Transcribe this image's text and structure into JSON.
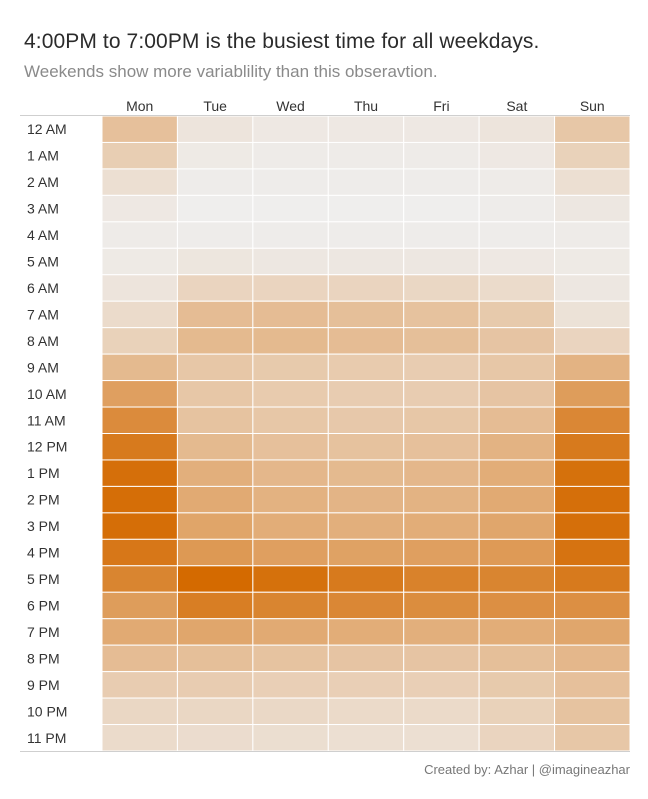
{
  "header": {
    "title": "4:00PM to 7:00PM is the busiest time for all weekdays.",
    "subtitle": "Weekends show more variablility than this obseravtion."
  },
  "footer": {
    "credit": "Created by: Azhar | @imagineazhar"
  },
  "chart_data": {
    "type": "heatmap",
    "x_categories": [
      "Mon",
      "Tue",
      "Wed",
      "Thu",
      "Fri",
      "Sat",
      "Sun"
    ],
    "y_categories": [
      "12 AM",
      "1 AM",
      "2 AM",
      "3 AM",
      "4 AM",
      "5 AM",
      "6 AM",
      "7 AM",
      "8 AM",
      "9 AM",
      "10 AM",
      "11 AM",
      "12 PM",
      "1 PM",
      "2 PM",
      "3 PM",
      "4 PM",
      "5 PM",
      "6 PM",
      "7 PM",
      "8 PM",
      "9 PM",
      "10 PM",
      "11 PM"
    ],
    "x_axis_position": "top",
    "value_range": [
      0,
      1
    ],
    "color_low": "#efefef",
    "color_high": "#d46a00",
    "cell_border_color": "#ffffff",
    "values": [
      [
        0.35,
        0.08,
        0.05,
        0.05,
        0.05,
        0.08,
        0.3
      ],
      [
        0.25,
        0.04,
        0.03,
        0.03,
        0.03,
        0.05,
        0.22
      ],
      [
        0.12,
        0.02,
        0.02,
        0.02,
        0.02,
        0.03,
        0.12
      ],
      [
        0.05,
        0.01,
        0.01,
        0.01,
        0.01,
        0.02,
        0.06
      ],
      [
        0.03,
        0.02,
        0.02,
        0.02,
        0.02,
        0.02,
        0.03
      ],
      [
        0.04,
        0.07,
        0.06,
        0.06,
        0.06,
        0.05,
        0.04
      ],
      [
        0.08,
        0.2,
        0.2,
        0.2,
        0.18,
        0.15,
        0.06
      ],
      [
        0.15,
        0.38,
        0.38,
        0.36,
        0.34,
        0.28,
        0.1
      ],
      [
        0.22,
        0.4,
        0.4,
        0.38,
        0.36,
        0.32,
        0.2
      ],
      [
        0.4,
        0.3,
        0.28,
        0.27,
        0.26,
        0.3,
        0.45
      ],
      [
        0.6,
        0.3,
        0.27,
        0.26,
        0.26,
        0.32,
        0.62
      ],
      [
        0.75,
        0.33,
        0.3,
        0.29,
        0.3,
        0.38,
        0.78
      ],
      [
        0.88,
        0.4,
        0.35,
        0.34,
        0.35,
        0.45,
        0.88
      ],
      [
        0.96,
        0.48,
        0.42,
        0.4,
        0.42,
        0.5,
        0.95
      ],
      [
        0.97,
        0.52,
        0.46,
        0.44,
        0.45,
        0.52,
        0.96
      ],
      [
        0.97,
        0.56,
        0.5,
        0.48,
        0.5,
        0.55,
        0.96
      ],
      [
        0.9,
        0.65,
        0.6,
        0.58,
        0.6,
        0.64,
        0.93
      ],
      [
        0.8,
        1.0,
        0.95,
        0.88,
        0.82,
        0.8,
        0.88
      ],
      [
        0.62,
        0.85,
        0.8,
        0.78,
        0.74,
        0.72,
        0.72
      ],
      [
        0.52,
        0.55,
        0.52,
        0.5,
        0.48,
        0.5,
        0.55
      ],
      [
        0.38,
        0.36,
        0.33,
        0.32,
        0.32,
        0.36,
        0.42
      ],
      [
        0.26,
        0.26,
        0.24,
        0.24,
        0.24,
        0.28,
        0.35
      ],
      [
        0.18,
        0.18,
        0.17,
        0.16,
        0.16,
        0.22,
        0.33
      ],
      [
        0.15,
        0.14,
        0.13,
        0.12,
        0.12,
        0.2,
        0.3
      ]
    ]
  }
}
